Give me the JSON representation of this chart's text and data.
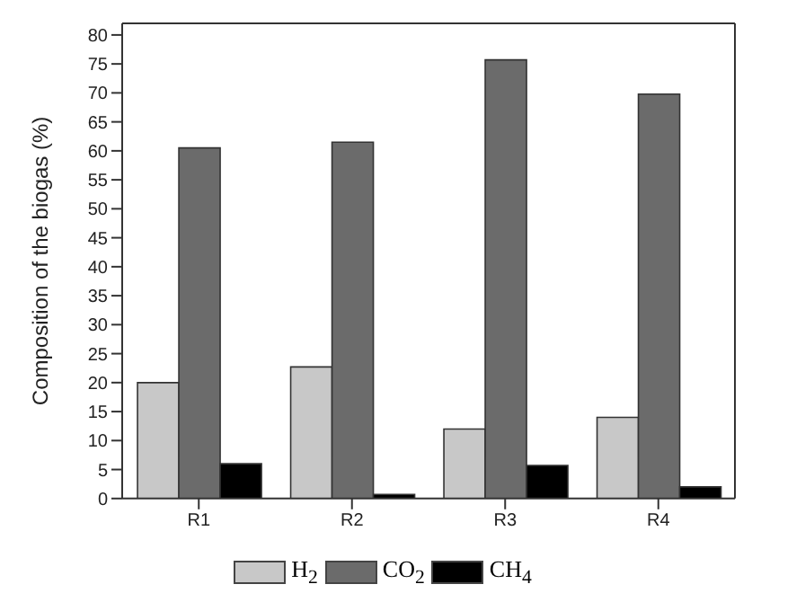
{
  "chart_data": {
    "type": "bar",
    "ylabel": "Composition of the biogas (%)",
    "categories": [
      "R1",
      "R2",
      "R3",
      "R4"
    ],
    "series": [
      {
        "name": "H$_{2}$",
        "color": "#c8c8c8",
        "values": [
          20,
          22.7,
          12,
          14
        ]
      },
      {
        "name": "CO$_{2}$",
        "color": "#6b6b6b",
        "values": [
          60.5,
          61.5,
          75.7,
          69.8
        ]
      },
      {
        "name": "CH$_{4}$",
        "color": "#000000",
        "values": [
          6,
          0.7,
          5.7,
          2
        ]
      }
    ],
    "ylim": [
      0,
      82
    ],
    "yticks": [
      0,
      5,
      10,
      15,
      20,
      25,
      30,
      35,
      40,
      45,
      50,
      55,
      60,
      65,
      70,
      75,
      80
    ],
    "grid": false,
    "legend": "bottom"
  }
}
